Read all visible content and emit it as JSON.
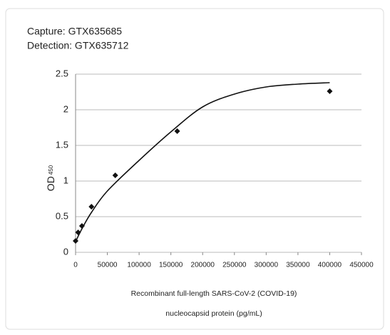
{
  "chart_data": {
    "type": "scatter",
    "title_lines": [
      "Capture: GTX635685",
      "Detection: GTX635712"
    ],
    "ylabel": "OD",
    "ylabel_sub": "450",
    "xlabel_lines": [
      "Recombinant full-length SARS-CoV-2 (COVID-19)",
      "nucleocapsid protein (pg/mL)"
    ],
    "xlim": [
      0,
      450000
    ],
    "xticks": [
      0,
      50000,
      100000,
      150000,
      200000,
      250000,
      300000,
      350000,
      400000,
      450000
    ],
    "ylim": [
      0,
      2.5
    ],
    "yticks": [
      0,
      0.5,
      1,
      1.5,
      2,
      2.5
    ],
    "grid": true,
    "series": [
      {
        "style": "markers",
        "color": "#111111",
        "x": [
          0,
          4000,
          10000,
          25000,
          62500,
          160000,
          400000
        ],
        "values": [
          0.16,
          0.28,
          0.37,
          0.64,
          1.08,
          1.7,
          2.26
        ]
      },
      {
        "style": "line",
        "color": "#111111",
        "x": [
          0,
          10000,
          25000,
          50000,
          100000,
          150000,
          200000,
          250000,
          300000,
          350000,
          400000
        ],
        "values": [
          0.15,
          0.33,
          0.56,
          0.86,
          1.29,
          1.69,
          2.04,
          2.22,
          2.32,
          2.36,
          2.38
        ]
      }
    ]
  }
}
